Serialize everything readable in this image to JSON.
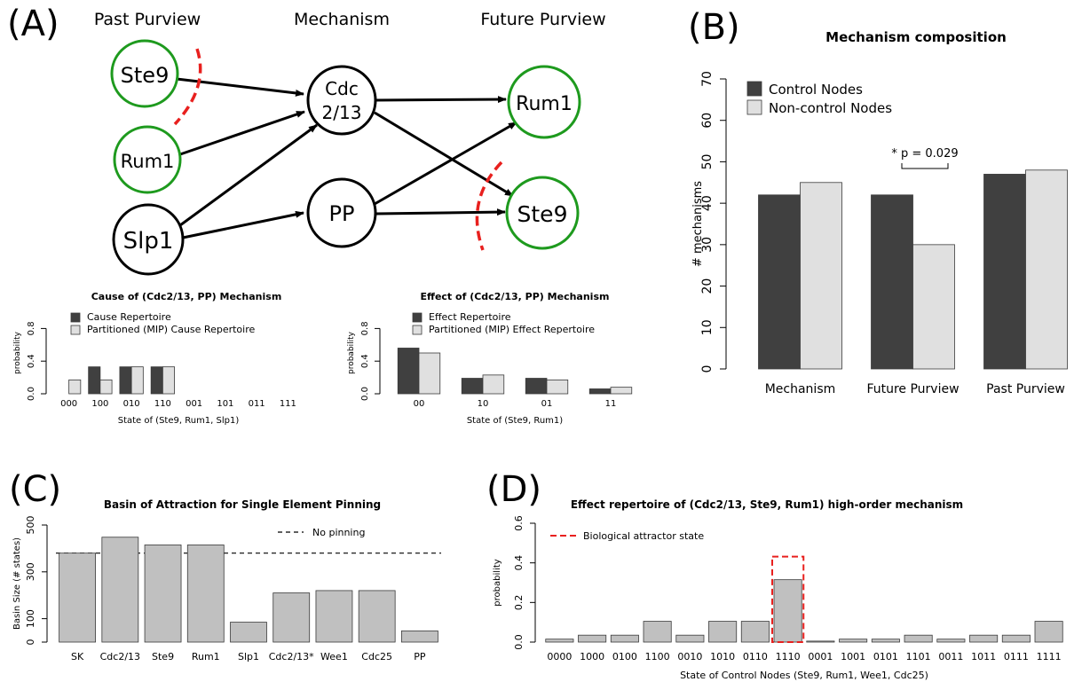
{
  "panel_letters": [
    "(A)",
    "(B)",
    "(C)",
    "(D)"
  ],
  "network": {
    "column_headers": [
      "Past Purview",
      "Mechanism",
      "Future Purview"
    ],
    "nodes": [
      {
        "id": "ste9_past",
        "label": "Ste9",
        "green": true
      },
      {
        "id": "rum1_past",
        "label": "Rum1",
        "green": true
      },
      {
        "id": "slp1",
        "label": "Slp1",
        "green": false
      },
      {
        "id": "cdc",
        "label": "Cdc 2/13",
        "green": false
      },
      {
        "id": "pp",
        "label": "PP",
        "green": false
      },
      {
        "id": "rum1_future",
        "label": "Rum1",
        "green": true
      },
      {
        "id": "ste9_future",
        "label": "Ste9",
        "green": true
      }
    ],
    "colors": {
      "purview_border": "#1e9a1e",
      "cut": "#e8201e"
    }
  },
  "chart_data": [
    {
      "id": "A1",
      "type": "bar",
      "title": "Cause of (Cdc2/13, PP) Mechanism",
      "xlabel": "State of (Ste9, Rum1, Slp1)",
      "ylabel": "probability",
      "categories": [
        "000",
        "100",
        "010",
        "110",
        "001",
        "101",
        "011",
        "111"
      ],
      "series": [
        {
          "name": "Cause Repertoire",
          "color": "#404040",
          "values": [
            0.0,
            0.33,
            0.33,
            0.33,
            0.0,
            0.0,
            0.0,
            0.0
          ]
        },
        {
          "name": "Partitioned (MIP) Cause Repertoire",
          "color": "#e0e0e0",
          "values": [
            0.17,
            0.17,
            0.33,
            0.33,
            0.0,
            0.0,
            0.0,
            0.0
          ]
        }
      ],
      "ylim": [
        0,
        1.0
      ],
      "yticks": [
        "0.0",
        "0.4",
        "0.8"
      ],
      "legend": "top-left"
    },
    {
      "id": "A2",
      "type": "bar",
      "title": "Effect of (Cdc2/13, PP) Mechanism",
      "xlabel": "State of (Ste9, Rum1)",
      "ylabel": "probability",
      "categories": [
        "00",
        "10",
        "01",
        "11"
      ],
      "series": [
        {
          "name": "Effect Repertoire",
          "color": "#404040",
          "values": [
            0.56,
            0.19,
            0.19,
            0.06
          ]
        },
        {
          "name": "Partitioned (MIP) Effect Repertoire",
          "color": "#e0e0e0",
          "values": [
            0.5,
            0.23,
            0.17,
            0.08
          ]
        }
      ],
      "ylim": [
        0,
        1.0
      ],
      "yticks": [
        "0.0",
        "0.4",
        "0.8"
      ],
      "legend": "top-left"
    },
    {
      "id": "B",
      "type": "bar",
      "title": "Mechanism composition",
      "xlabel": "",
      "ylabel": "# mechanisms",
      "categories": [
        "Mechanism",
        "Future Purview",
        "Past Purview"
      ],
      "series": [
        {
          "name": "Control Nodes",
          "color": "#404040",
          "values": [
            42,
            42,
            47
          ]
        },
        {
          "name": "Non-control Nodes",
          "color": "#e0e0e0",
          "values": [
            45,
            30,
            48
          ]
        }
      ],
      "ylim": [
        0,
        70
      ],
      "yticks": [
        "0",
        "10",
        "20",
        "30",
        "40",
        "50",
        "60",
        "70"
      ],
      "annotation": "* p = 0.029",
      "legend": "top-left"
    },
    {
      "id": "C",
      "type": "bar",
      "title": "Basin of Attraction for Single Element Pinning",
      "xlabel": "",
      "ylabel": "Basin Size (# states)",
      "categories": [
        "SK",
        "Cdc2/13",
        "Ste9",
        "Rum1",
        "Slp1",
        "Cdc2/13*",
        "Wee1",
        "Cdc25",
        "PP"
      ],
      "values": [
        380,
        448,
        415,
        415,
        85,
        210,
        220,
        220,
        48
      ],
      "reference_line": {
        "label": "No pinning",
        "value": 380
      },
      "ylim": [
        0,
        500
      ],
      "yticks": [
        "0",
        "100",
        "300",
        "500"
      ],
      "color": "#c0c0c0"
    },
    {
      "id": "D",
      "type": "bar",
      "title": "Effect repertoire of (Cdc2/13, Ste9, Rum1) high-order mechanism",
      "xlabel": "State of Control Nodes (Ste9, Rum1, Wee1, Cdc25)",
      "ylabel": "probability",
      "categories": [
        "0000",
        "1000",
        "0100",
        "1100",
        "0010",
        "1010",
        "0110",
        "1110",
        "0001",
        "1001",
        "0101",
        "1101",
        "0011",
        "1011",
        "0111",
        "1111"
      ],
      "values": [
        0.015,
        0.035,
        0.035,
        0.105,
        0.035,
        0.105,
        0.105,
        0.315,
        0.005,
        0.015,
        0.015,
        0.035,
        0.015,
        0.035,
        0.035,
        0.105
      ],
      "highlight_category": "1110",
      "legend_label": "Biological attractor state",
      "ylim": [
        0,
        0.6
      ],
      "yticks": [
        "0.0",
        "0.2",
        "0.4",
        "0.6"
      ],
      "color": "#c0c0c0",
      "highlight_color": "#e8201e"
    }
  ]
}
